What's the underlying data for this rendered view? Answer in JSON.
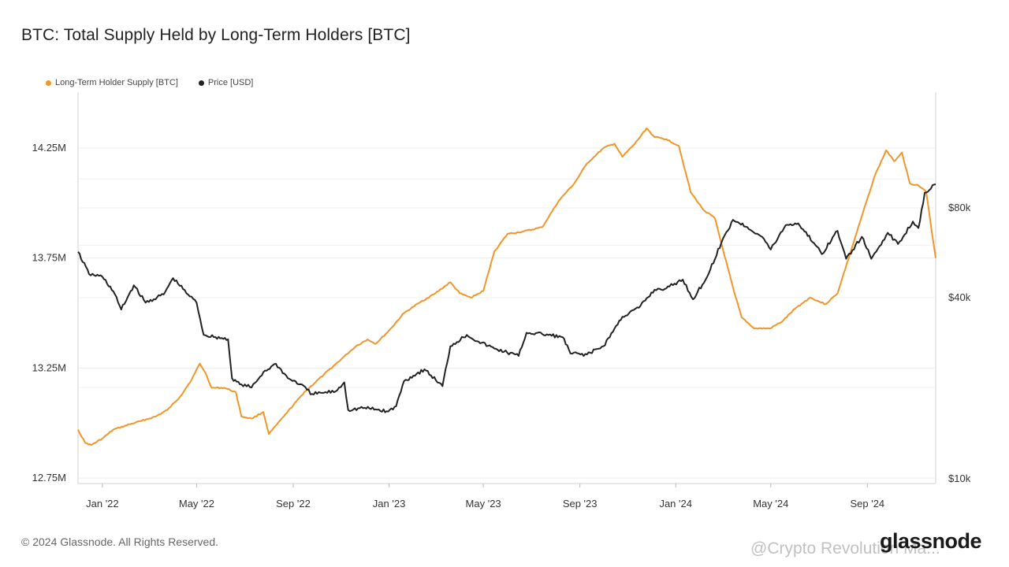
{
  "title": "BTC: Total Supply Held by Long-Term Holders [BTC]",
  "legend": [
    {
      "label": "Long-Term Holder Supply [BTC]",
      "color": "#f0962a"
    },
    {
      "label": "Price [USD]",
      "color": "#222222"
    }
  ],
  "footer": {
    "copyright": "© 2024 Glassnode. All Rights Reserved.",
    "brand": "glassnode",
    "watermark": "@Crypto Revolution Ma..."
  },
  "chart_data": {
    "type": "line",
    "title": "BTC: Total Supply Held by Long-Term Holders [BTC]",
    "x_ticks": [
      "Jan '22",
      "May '22",
      "Sep '22",
      "Jan '23",
      "May '23",
      "Sep '23",
      "Jan '24",
      "May '24",
      "Sep '24"
    ],
    "y_left_ticks": [
      "14.25M",
      "13.75M",
      "13.25M",
      "12.75M"
    ],
    "y_left_range": [
      12.75,
      14.25
    ],
    "y_right_ticks": [
      "$80k",
      "$40k",
      "$10k"
    ],
    "y_right_scale": "log",
    "grid": true,
    "legend_position": "top-left",
    "series": [
      {
        "name": "Long-Term Holder Supply [BTC]",
        "color": "#f0962a",
        "axis": "left",
        "unit": "M BTC",
        "points": [
          [
            "2021-12-01",
            12.97
          ],
          [
            "2021-12-10",
            12.91
          ],
          [
            "2021-12-18",
            12.9
          ],
          [
            "2022-01-01",
            12.93
          ],
          [
            "2022-01-15",
            12.97
          ],
          [
            "2022-02-01",
            12.99
          ],
          [
            "2022-02-20",
            13.01
          ],
          [
            "2022-03-10",
            13.03
          ],
          [
            "2022-03-25",
            13.06
          ],
          [
            "2022-04-10",
            13.12
          ],
          [
            "2022-04-25",
            13.2
          ],
          [
            "2022-05-05",
            13.27
          ],
          [
            "2022-05-12",
            13.23
          ],
          [
            "2022-05-20",
            13.16
          ],
          [
            "2022-06-05",
            13.16
          ],
          [
            "2022-06-20",
            13.14
          ],
          [
            "2022-06-27",
            13.03
          ],
          [
            "2022-07-10",
            13.02
          ],
          [
            "2022-07-25",
            13.05
          ],
          [
            "2022-08-01",
            12.95
          ],
          [
            "2022-08-20",
            13.03
          ],
          [
            "2022-09-15",
            13.14
          ],
          [
            "2022-10-10",
            13.22
          ],
          [
            "2022-11-01",
            13.29
          ],
          [
            "2022-11-20",
            13.35
          ],
          [
            "2022-12-05",
            13.38
          ],
          [
            "2022-12-15",
            13.36
          ],
          [
            "2023-01-01",
            13.42
          ],
          [
            "2023-01-20",
            13.5
          ],
          [
            "2023-02-10",
            13.55
          ],
          [
            "2023-03-01",
            13.59
          ],
          [
            "2023-03-20",
            13.64
          ],
          [
            "2023-04-01",
            13.59
          ],
          [
            "2023-04-15",
            13.57
          ],
          [
            "2023-05-01",
            13.6
          ],
          [
            "2023-05-15",
            13.78
          ],
          [
            "2023-06-01",
            13.86
          ],
          [
            "2023-06-20",
            13.87
          ],
          [
            "2023-07-15",
            13.89
          ],
          [
            "2023-08-05",
            14.01
          ],
          [
            "2023-08-25",
            14.09
          ],
          [
            "2023-09-10",
            14.18
          ],
          [
            "2023-10-01",
            14.25
          ],
          [
            "2023-10-15",
            14.27
          ],
          [
            "2023-10-25",
            14.21
          ],
          [
            "2023-11-10",
            14.27
          ],
          [
            "2023-11-25",
            14.34
          ],
          [
            "2023-12-05",
            14.3
          ],
          [
            "2023-12-20",
            14.29
          ],
          [
            "2024-01-05",
            14.26
          ],
          [
            "2024-01-20",
            14.05
          ],
          [
            "2024-02-05",
            13.97
          ],
          [
            "2024-02-20",
            13.93
          ],
          [
            "2024-03-01",
            13.79
          ],
          [
            "2024-03-15",
            13.6
          ],
          [
            "2024-03-25",
            13.48
          ],
          [
            "2024-04-10",
            13.43
          ],
          [
            "2024-04-30",
            13.43
          ],
          [
            "2024-05-15",
            13.46
          ],
          [
            "2024-06-01",
            13.52
          ],
          [
            "2024-06-20",
            13.57
          ],
          [
            "2024-07-10",
            13.54
          ],
          [
            "2024-07-25",
            13.59
          ],
          [
            "2024-08-10",
            13.77
          ],
          [
            "2024-08-25",
            13.94
          ],
          [
            "2024-09-10",
            14.12
          ],
          [
            "2024-09-25",
            14.24
          ],
          [
            "2024-10-05",
            14.19
          ],
          [
            "2024-10-15",
            14.23
          ],
          [
            "2024-10-25",
            14.09
          ],
          [
            "2024-11-05",
            14.08
          ],
          [
            "2024-11-15",
            14.05
          ],
          [
            "2024-11-22",
            13.87
          ],
          [
            "2024-11-27",
            13.75
          ]
        ]
      },
      {
        "name": "Price [USD]",
        "color": "#222222",
        "axis": "right",
        "unit": "USD",
        "points": [
          [
            "2021-12-01",
            57000
          ],
          [
            "2021-12-15",
            48000
          ],
          [
            "2022-01-01",
            47000
          ],
          [
            "2022-01-15",
            42000
          ],
          [
            "2022-01-25",
            36500
          ],
          [
            "2022-02-10",
            44000
          ],
          [
            "2022-02-25",
            38500
          ],
          [
            "2022-03-20",
            41000
          ],
          [
            "2022-04-01",
            46500
          ],
          [
            "2022-04-20",
            41000
          ],
          [
            "2022-05-01",
            38500
          ],
          [
            "2022-05-10",
            30000
          ],
          [
            "2022-05-25",
            29500
          ],
          [
            "2022-06-10",
            29000
          ],
          [
            "2022-06-15",
            21500
          ],
          [
            "2022-06-25",
            20500
          ],
          [
            "2022-07-10",
            20000
          ],
          [
            "2022-07-25",
            22500
          ],
          [
            "2022-08-10",
            24000
          ],
          [
            "2022-08-25",
            21500
          ],
          [
            "2022-09-10",
            20500
          ],
          [
            "2022-09-25",
            19000
          ],
          [
            "2022-10-10",
            19200
          ],
          [
            "2022-10-25",
            19400
          ],
          [
            "2022-11-05",
            20800
          ],
          [
            "2022-11-10",
            16800
          ],
          [
            "2022-12-01",
            17100
          ],
          [
            "2022-12-31",
            16600
          ],
          [
            "2023-01-10",
            17300
          ],
          [
            "2023-01-20",
            21000
          ],
          [
            "2023-02-15",
            23000
          ],
          [
            "2023-03-10",
            20200
          ],
          [
            "2023-03-20",
            27500
          ],
          [
            "2023-04-10",
            30000
          ],
          [
            "2023-04-25",
            28500
          ],
          [
            "2023-05-15",
            27000
          ],
          [
            "2023-06-15",
            25500
          ],
          [
            "2023-06-25",
            30500
          ],
          [
            "2023-07-15",
            30200
          ],
          [
            "2023-08-10",
            29500
          ],
          [
            "2023-08-20",
            26000
          ],
          [
            "2023-09-10",
            25800
          ],
          [
            "2023-10-01",
            27500
          ],
          [
            "2023-10-25",
            34500
          ],
          [
            "2023-11-15",
            37000
          ],
          [
            "2023-12-05",
            42500
          ],
          [
            "2023-12-20",
            43000
          ],
          [
            "2024-01-10",
            46000
          ],
          [
            "2024-01-23",
            39500
          ],
          [
            "2024-02-10",
            47000
          ],
          [
            "2024-02-28",
            61000
          ],
          [
            "2024-03-14",
            73000
          ],
          [
            "2024-04-01",
            69000
          ],
          [
            "2024-04-20",
            64000
          ],
          [
            "2024-05-01",
            58000
          ],
          [
            "2024-05-20",
            70000
          ],
          [
            "2024-06-05",
            71000
          ],
          [
            "2024-06-25",
            61000
          ],
          [
            "2024-07-05",
            56000
          ],
          [
            "2024-07-25",
            67000
          ],
          [
            "2024-08-05",
            54000
          ],
          [
            "2024-08-25",
            64000
          ],
          [
            "2024-09-06",
            54000
          ],
          [
            "2024-09-27",
            66000
          ],
          [
            "2024-10-10",
            60500
          ],
          [
            "2024-10-29",
            72000
          ],
          [
            "2024-11-05",
            68500
          ],
          [
            "2024-11-13",
            90000
          ],
          [
            "2024-11-27",
            96000
          ]
        ]
      }
    ]
  }
}
